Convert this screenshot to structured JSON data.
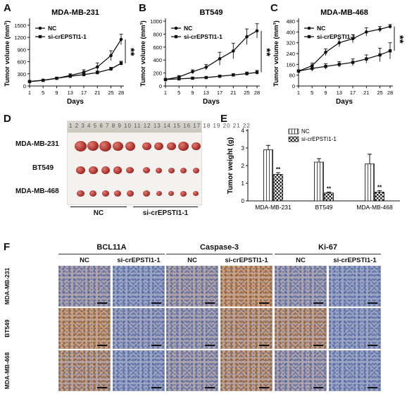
{
  "panel_labels": [
    "A",
    "B",
    "C",
    "D",
    "E",
    "F"
  ],
  "chart_data": [
    {
      "type": "line",
      "title": "MDA-MB-231",
      "xlabel": "Days",
      "ylabel": "Tumor volume (mm³)",
      "x": [
        1,
        5,
        9,
        13,
        17,
        21,
        25,
        28
      ],
      "ylim": [
        0,
        1600
      ],
      "yticks": [
        0,
        300,
        600,
        900,
        1200,
        1500
      ],
      "series": [
        {
          "name": "NC",
          "marker": "circle",
          "values": [
            110,
            140,
            190,
            260,
            340,
            470,
            750,
            1150
          ],
          "errors": [
            10,
            15,
            20,
            40,
            60,
            100,
            120,
            130
          ]
        },
        {
          "name": "si-crEPSTI1-1",
          "marker": "square",
          "values": [
            110,
            140,
            190,
            240,
            280,
            330,
            420,
            560
          ],
          "errors": [
            10,
            15,
            20,
            25,
            30,
            40,
            40,
            50
          ]
        }
      ],
      "annotation": "**",
      "legend": "top-left"
    },
    {
      "type": "line",
      "title": "BT549",
      "xlabel": "Days",
      "ylabel": "Tumor volume (mm³)",
      "x": [
        1,
        5,
        9,
        13,
        17,
        21,
        25,
        28
      ],
      "ylim": [
        0,
        1000
      ],
      "yticks": [
        0,
        200,
        400,
        600,
        800,
        1000
      ],
      "series": [
        {
          "name": "NC",
          "marker": "circle",
          "values": [
            100,
            140,
            220,
            290,
            420,
            540,
            760,
            850
          ],
          "errors": [
            10,
            20,
            30,
            40,
            100,
            120,
            120,
            110
          ]
        },
        {
          "name": "si-crEPSTI1-1",
          "marker": "square",
          "values": [
            100,
            110,
            120,
            130,
            150,
            170,
            190,
            210
          ],
          "errors": [
            10,
            10,
            10,
            15,
            20,
            20,
            25,
            30
          ]
        }
      ],
      "annotation": "**",
      "legend": "top-left"
    },
    {
      "type": "line",
      "title": "MDA-MB-468",
      "xlabel": "Days",
      "ylabel": "Tumor volume (mm³)",
      "x": [
        1,
        5,
        9,
        13,
        17,
        21,
        25,
        28
      ],
      "ylim": [
        0,
        480
      ],
      "yticks": [
        0,
        80,
        160,
        240,
        320,
        400,
        480
      ],
      "series": [
        {
          "name": "NC",
          "marker": "circle",
          "values": [
            110,
            150,
            250,
            320,
            350,
            400,
            420,
            440
          ],
          "errors": [
            10,
            20,
            25,
            30,
            30,
            30,
            20,
            15
          ]
        },
        {
          "name": "si-crEPSTI1-1",
          "marker": "square",
          "values": [
            110,
            130,
            145,
            160,
            175,
            200,
            230,
            260
          ],
          "errors": [
            10,
            20,
            20,
            20,
            25,
            30,
            50,
            60
          ]
        }
      ],
      "annotation": "**",
      "legend": "top-left"
    },
    {
      "type": "bar",
      "xlabel": "",
      "ylabel": "Tumor weight (g)",
      "categories": [
        "MDA-MB-231",
        "BT549",
        "MDA-MB-468"
      ],
      "ylim": [
        0,
        4
      ],
      "yticks": [
        0,
        1,
        2,
        3,
        4
      ],
      "series": [
        {
          "name": "NC",
          "values": [
            2.9,
            2.2,
            2.1
          ],
          "errors": [
            0.25,
            0.2,
            0.55
          ]
        },
        {
          "name": "si-crEPSTI1-1",
          "values": [
            1.5,
            0.45,
            0.5
          ],
          "errors": [
            0.1,
            0.05,
            0.08
          ]
        }
      ],
      "annotations": [
        "**",
        "**",
        "**"
      ],
      "legend": "top"
    }
  ],
  "photo": {
    "rows": [
      "MDA-MB-231",
      "BT549",
      "MDA-MB-468"
    ],
    "groups": [
      "NC",
      "si-crEPSTI1-1"
    ],
    "ruler_text": "1 2 3 4 5 6 7 8 9 10 11 12 13 14 15 16 17 18 19 20 21 22"
  },
  "ihc": {
    "markers": [
      "BCL11A",
      "Caspase-3",
      "Ki-67"
    ],
    "conditions": [
      "NC",
      "si-crEPSTI1-1"
    ],
    "rows": [
      "MDA-MB-231",
      "BT549",
      "MDA-MB-468"
    ]
  }
}
